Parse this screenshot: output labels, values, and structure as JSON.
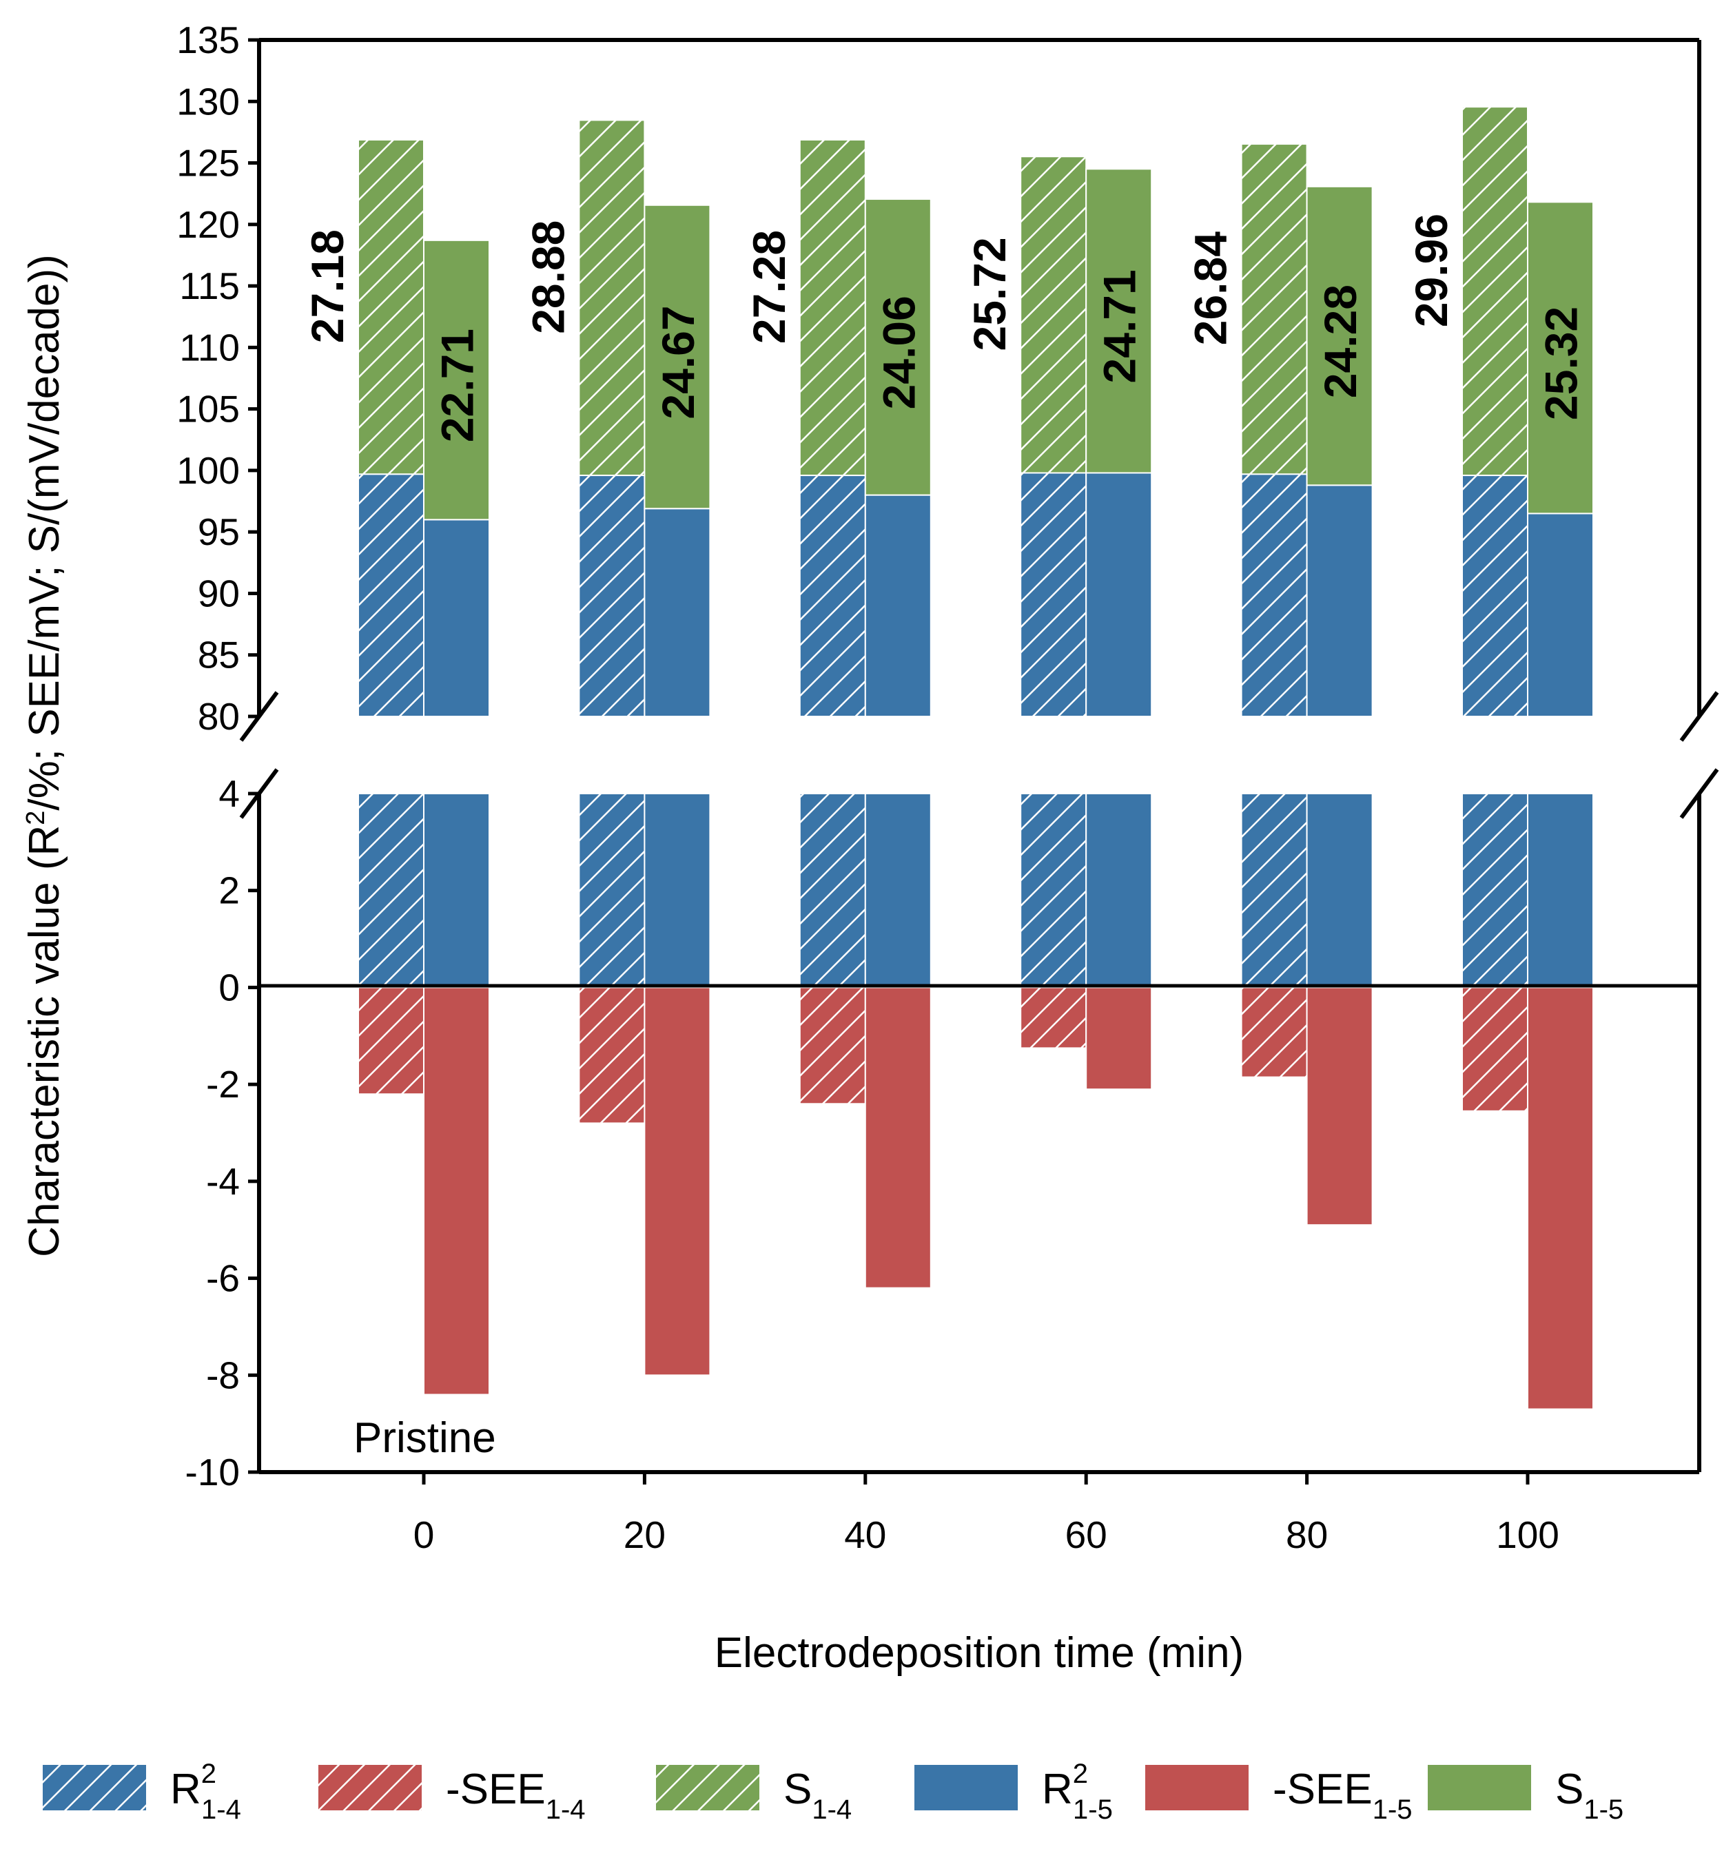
{
  "chart_data": {
    "type": "bar",
    "xlabel": "Electrodeposition time (min)",
    "ylabel": "Characteristic value (R2/%; SEE/mV; S/(mV/decade))",
    "ylabel_parts": {
      "pre": "Characteristic value (R",
      "sup": "2",
      "post": "/%; SEE/mV; S/(mV/decade))"
    },
    "categories": [
      "0",
      "20",
      "40",
      "60",
      "80",
      "100"
    ],
    "annotation": "Pristine",
    "broken_axis": {
      "upper": {
        "ylim": [
          80,
          135
        ],
        "ticks": [
          "80",
          "85",
          "90",
          "95",
          "100",
          "105",
          "110",
          "115",
          "120",
          "125",
          "130",
          "135"
        ]
      },
      "lower": {
        "ylim": [
          -10,
          4
        ],
        "ticks": [
          "-10",
          "-8",
          "-6",
          "-4",
          "-2",
          "0",
          "2",
          "4"
        ]
      }
    },
    "series": [
      {
        "name": "R2_1-4",
        "label_main": "R",
        "label_sup": "2",
        "label_sub": "1-4",
        "color": "#3a75a8",
        "hatched": true,
        "values": [
          99.7,
          99.6,
          99.6,
          99.8,
          99.7,
          99.6
        ]
      },
      {
        "name": "-SEE_1-4",
        "label_main": "-SEE",
        "label_sup": "",
        "label_sub": "1-4",
        "color": "#c05150",
        "hatched": true,
        "values": [
          -2.2,
          -2.8,
          -2.4,
          -1.25,
          -1.85,
          -2.55
        ]
      },
      {
        "name": "S_1-4",
        "label_main": "S",
        "label_sup": "",
        "label_sub": "1-4",
        "color": "#78a355",
        "hatched": true,
        "values": [
          27.18,
          28.88,
          27.28,
          25.72,
          26.84,
          29.96
        ],
        "data_labels": [
          "27.18",
          "28.88",
          "27.28",
          "25.72",
          "26.84",
          "29.96"
        ]
      },
      {
        "name": "R2_1-5",
        "label_main": "R",
        "label_sup": "2",
        "label_sub": "1-5",
        "color": "#3a75a8",
        "hatched": false,
        "values": [
          96.0,
          96.9,
          98.0,
          99.8,
          98.8,
          96.5
        ]
      },
      {
        "name": "-SEE_1-5",
        "label_main": "-SEE",
        "label_sup": "",
        "label_sub": "1-5",
        "color": "#c05150",
        "hatched": false,
        "values": [
          -8.4,
          -8.0,
          -6.2,
          -2.1,
          -4.9,
          -8.7
        ]
      },
      {
        "name": "S_1-5",
        "label_main": "S",
        "label_sup": "",
        "label_sub": "1-5",
        "color": "#78a355",
        "hatched": false,
        "values": [
          22.71,
          24.67,
          24.06,
          24.71,
          24.28,
          25.32
        ],
        "data_labels": [
          "22.71",
          "24.67",
          "24.06",
          "24.71",
          "24.28",
          "25.32"
        ]
      }
    ],
    "stacking": "S values stacked on top of R2 values in the upper panel; R2 bars also extend through the lower panel from 0 to the break",
    "grid": false,
    "legend_position": "bottom"
  }
}
